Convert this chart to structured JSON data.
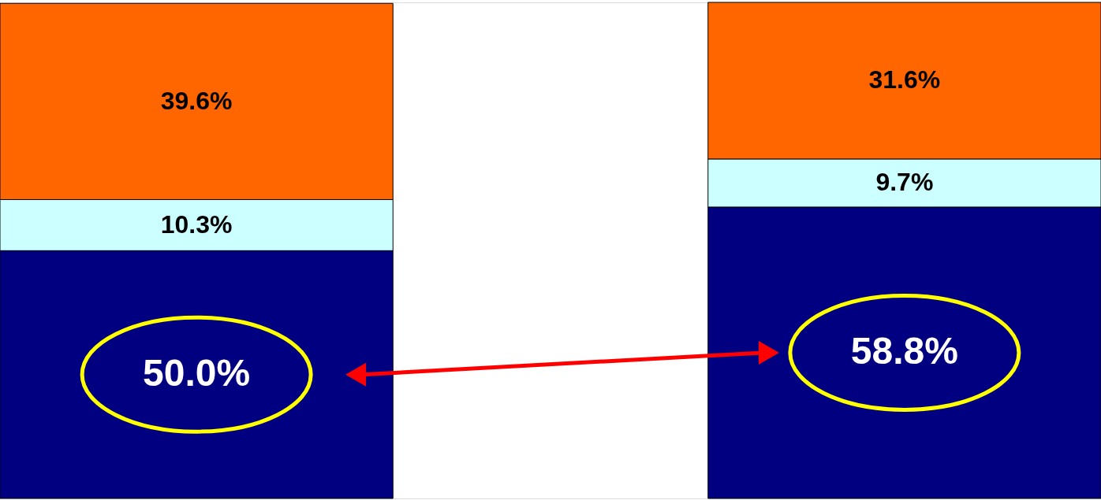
{
  "chart_data": {
    "type": "bar",
    "stacked": true,
    "tick_labels": false,
    "categories": [
      null,
      null
    ],
    "series": [
      {
        "color": "#000080",
        "values": [
          50.0,
          58.8
        ],
        "value_labels": [
          "50.0%",
          "58.8%"
        ]
      },
      {
        "color": "#ccffff",
        "values": [
          10.3,
          9.7
        ],
        "value_labels": [
          "10.3%",
          "9.7%"
        ]
      },
      {
        "color": "#ff6600",
        "values": [
          39.6,
          31.6
        ],
        "value_labels": [
          "39.6%",
          "31.6%"
        ]
      }
    ]
  }
}
